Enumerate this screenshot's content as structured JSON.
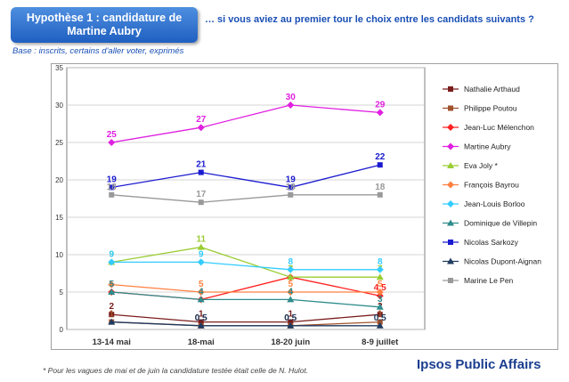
{
  "header": {
    "title_line1": "Hypothèse 1 : candidature de",
    "title_line2": "Martine Aubry",
    "question": "… si vous aviez au premier tour le choix entre les candidats suivants ?",
    "base": "Base : inscrits, certains d'aller voter, exprimés"
  },
  "footer": {
    "footnote": "* Pour les vagues de mai et de juin la candidature testée était celle de N. Hulot.",
    "brand": "Ipsos Public Affairs"
  },
  "chart_data": {
    "type": "line",
    "categories": [
      "13-14 mai",
      "18-mai",
      "18-20 juin",
      "8-9 juillet"
    ],
    "ylim": [
      0,
      35
    ],
    "yticks": [
      0,
      5,
      10,
      15,
      20,
      25,
      30,
      35
    ],
    "grid": true,
    "legend_position": "right",
    "series": [
      {
        "name": "Nathalie Arthaud",
        "color": "#7b1d1d",
        "marker": "square",
        "values": [
          2,
          1,
          1,
          2
        ],
        "labels": [
          "2",
          "1",
          "1",
          "2"
        ]
      },
      {
        "name": "Philippe Poutou",
        "color": "#a0522d",
        "marker": "square",
        "values": [
          1,
          0.5,
          0.5,
          1
        ],
        "labels": [
          "1",
          "0.5",
          "0.5",
          "1"
        ]
      },
      {
        "name": "Jean-Luc Mélenchon",
        "color": "#ff2020",
        "marker": "diamond",
        "values": [
          5,
          4,
          7,
          4.5
        ],
        "labels": [
          "5",
          "4",
          "7",
          "4.5"
        ]
      },
      {
        "name": "Martine Aubry",
        "color": "#e020e0",
        "marker": "diamond",
        "values": [
          25,
          27,
          30,
          29
        ],
        "labels": [
          "25",
          "27",
          "30",
          "29"
        ]
      },
      {
        "name": "Eva Joly *",
        "color": "#9acd32",
        "marker": "triangle",
        "values": [
          9,
          11,
          7,
          7
        ],
        "labels": [
          "9",
          "11",
          "7",
          "7"
        ]
      },
      {
        "name": "François Bayrou",
        "color": "#ff8040",
        "marker": "diamond",
        "values": [
          6,
          5,
          5,
          5
        ],
        "labels": [
          "",
          "5",
          "5",
          "5"
        ]
      },
      {
        "name": "Jean-Louis Borloo",
        "color": "#33ccff",
        "marker": "diamond",
        "values": [
          9,
          9,
          8,
          8
        ],
        "labels": [
          "9",
          "9",
          "8",
          "8"
        ]
      },
      {
        "name": "Dominique de Villepin",
        "color": "#2e8b8b",
        "marker": "triangle",
        "values": [
          5,
          4,
          4,
          3
        ],
        "labels": [
          "5",
          "4",
          "4",
          "3"
        ]
      },
      {
        "name": "Nicolas Sarkozy",
        "color": "#1a1ad0",
        "marker": "square",
        "values": [
          19,
          21,
          19,
          22
        ],
        "labels": [
          "19",
          "21",
          "19",
          "22"
        ]
      },
      {
        "name": "Nicolas Dupont-Aignan",
        "color": "#1f3a5f",
        "marker": "triangle",
        "values": [
          1,
          0.5,
          0.5,
          0.5
        ],
        "labels": [
          "",
          "0.5",
          "0.5",
          "0.5"
        ]
      },
      {
        "name": "Marine Le Pen",
        "color": "#999999",
        "marker": "square",
        "values": [
          18,
          17,
          18,
          18
        ],
        "labels": [
          "18",
          "17",
          "18",
          "18"
        ]
      }
    ]
  }
}
